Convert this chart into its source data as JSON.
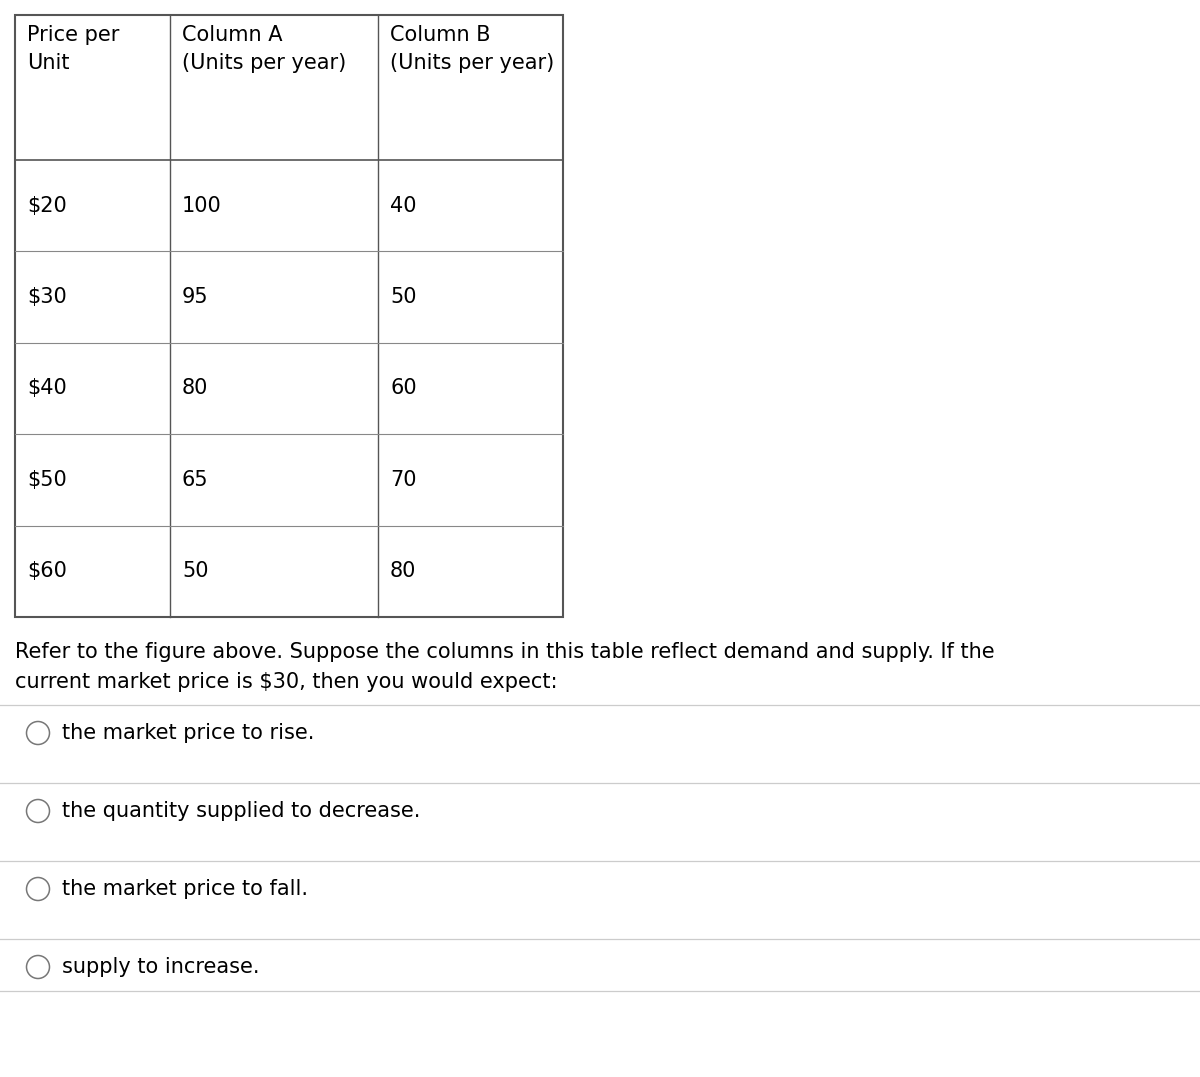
{
  "table_headers_line1": [
    "Price per",
    "Column A",
    "Column B"
  ],
  "table_headers_line2": [
    "Unit",
    "(Units per year)",
    "(Units per year)"
  ],
  "table_data": [
    [
      "$20",
      "100",
      "40"
    ],
    [
      "$30",
      "95",
      "50"
    ],
    [
      "$40",
      "80",
      "60"
    ],
    [
      "$50",
      "65",
      "70"
    ],
    [
      "$60",
      "50",
      "80"
    ]
  ],
  "question_text_line1": "Refer to the figure above. Suppose the columns in this table reflect demand and supply. If the",
  "question_text_line2": "current market price is $30, then you would expect:",
  "options": [
    "the market price to rise.",
    "the quantity supplied to decrease.",
    "the market price to fall.",
    "supply to increase."
  ],
  "bg_color": "#ffffff",
  "text_color": "#000000",
  "line_color": "#cccccc",
  "table_border_color": "#555555",
  "table_inner_line_color": "#888888",
  "font_size_table": 15,
  "font_size_question": 15,
  "font_size_options": 15
}
